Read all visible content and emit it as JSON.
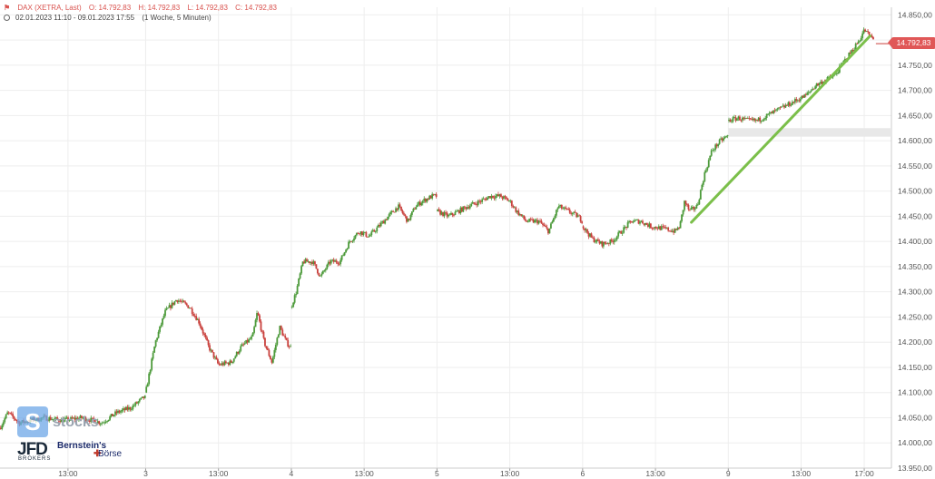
{
  "header": {
    "flag_icon": "chart-flag-icon",
    "instrument": "DAX (XETRA, Last)",
    "open": "O: 14.792,83",
    "high": "H: 14.792,83",
    "low": "L: 14.792,83",
    "close": "C: 14.792,83",
    "range": "02.01.2023 11:10 - 09.01.2023 17:55",
    "period": "(1 Woche, 5 Minuten)"
  },
  "last_price_tag": "14.792,83",
  "logos": {
    "s_mark": "S",
    "stocks": "stocks",
    "jfd": "JFD",
    "jfd_sub": "BROKERS",
    "bernstein": "Bernstein's",
    "borse": "Börse"
  },
  "colors": {
    "up": "#4c9a3a",
    "down": "#c9403c",
    "trendline": "#7bbf4a",
    "grid": "#eeeeee",
    "price_tag": "#e05757",
    "gap_band": "#e8e8e8"
  },
  "chart_data": {
    "type": "candlestick",
    "title": "",
    "ylim": [
      13950,
      14865
    ],
    "y_ticks": [
      "14.850,00",
      "14.800,00",
      "14.750,00",
      "14.700,00",
      "14.650,00",
      "14.600,00",
      "14.550,00",
      "14.500,00",
      "14.450,00",
      "14.400,00",
      "14.350,00",
      "14.300,00",
      "14.250,00",
      "14.200,00",
      "14.150,00",
      "14.100,00",
      "14.050,00",
      "14.000,00",
      "13.950,00"
    ],
    "y_tick_values": [
      14850,
      14800,
      14750,
      14700,
      14650,
      14600,
      14550,
      14500,
      14450,
      14400,
      14350,
      14300,
      14250,
      14200,
      14150,
      14100,
      14050,
      14000,
      13950
    ],
    "x_ticks": [
      "13:00",
      "3",
      "13:00",
      "4",
      "13:00",
      "5",
      "13:00",
      "6",
      "13:00",
      "9",
      "13:00",
      "17:00"
    ],
    "x_tick_positions": [
      0.7,
      1.5,
      2.25,
      3.0,
      3.75,
      4.5,
      5.25,
      6.0,
      6.75,
      7.5,
      8.25,
      8.9
    ],
    "sessions": [
      {
        "start": 0.0,
        "end": 1.5,
        "path": [
          [
            0.0,
            14030
          ],
          [
            0.08,
            14060
          ],
          [
            0.2,
            14040
          ],
          [
            0.45,
            14050
          ],
          [
            0.65,
            14045
          ],
          [
            0.85,
            14050
          ],
          [
            1.05,
            14040
          ],
          [
            1.2,
            14060
          ],
          [
            1.35,
            14070
          ],
          [
            1.48,
            14090
          ]
        ]
      },
      {
        "start": 1.5,
        "end": 3.0,
        "path": [
          [
            1.5,
            14100
          ],
          [
            1.6,
            14200
          ],
          [
            1.7,
            14260
          ],
          [
            1.82,
            14285
          ],
          [
            1.95,
            14270
          ],
          [
            2.05,
            14240
          ],
          [
            2.15,
            14190
          ],
          [
            2.25,
            14155
          ],
          [
            2.38,
            14160
          ],
          [
            2.48,
            14190
          ],
          [
            2.6,
            14210
          ],
          [
            2.65,
            14260
          ],
          [
            2.72,
            14200
          ],
          [
            2.8,
            14160
          ],
          [
            2.88,
            14230
          ],
          [
            2.95,
            14200
          ],
          [
            2.99,
            14190
          ]
        ]
      },
      {
        "start": 3.0,
        "end": 4.5,
        "path": [
          [
            3.0,
            14270
          ],
          [
            3.05,
            14300
          ],
          [
            3.12,
            14360
          ],
          [
            3.22,
            14360
          ],
          [
            3.3,
            14330
          ],
          [
            3.4,
            14360
          ],
          [
            3.5,
            14360
          ],
          [
            3.6,
            14400
          ],
          [
            3.7,
            14420
          ],
          [
            3.8,
            14410
          ],
          [
            3.9,
            14430
          ],
          [
            4.0,
            14450
          ],
          [
            4.1,
            14470
          ],
          [
            4.2,
            14440
          ],
          [
            4.28,
            14470
          ],
          [
            4.35,
            14480
          ],
          [
            4.45,
            14490
          ],
          [
            4.5,
            14490
          ]
        ]
      },
      {
        "start": 4.5,
        "end": 6.0,
        "path": [
          [
            4.5,
            14460
          ],
          [
            4.62,
            14450
          ],
          [
            4.72,
            14460
          ],
          [
            4.82,
            14470
          ],
          [
            4.95,
            14480
          ],
          [
            5.05,
            14490
          ],
          [
            5.15,
            14490
          ],
          [
            5.25,
            14480
          ],
          [
            5.32,
            14460
          ],
          [
            5.42,
            14440
          ],
          [
            5.55,
            14440
          ],
          [
            5.65,
            14420
          ],
          [
            5.75,
            14470
          ],
          [
            5.85,
            14460
          ],
          [
            5.95,
            14450
          ],
          [
            6.0,
            14440
          ]
        ]
      },
      {
        "start": 6.0,
        "end": 7.5,
        "path": [
          [
            6.0,
            14430
          ],
          [
            6.1,
            14405
          ],
          [
            6.2,
            14395
          ],
          [
            6.3,
            14400
          ],
          [
            6.4,
            14420
          ],
          [
            6.5,
            14440
          ],
          [
            6.6,
            14440
          ],
          [
            6.7,
            14430
          ],
          [
            6.85,
            14425
          ],
          [
            6.95,
            14420
          ],
          [
            7.0,
            14430
          ],
          [
            7.05,
            14480
          ],
          [
            7.1,
            14460
          ],
          [
            7.18,
            14470
          ],
          [
            7.25,
            14530
          ],
          [
            7.33,
            14580
          ],
          [
            7.42,
            14600
          ],
          [
            7.5,
            14610
          ]
        ]
      },
      {
        "start": 7.5,
        "end": 9.0,
        "path": [
          [
            7.5,
            14640
          ],
          [
            7.6,
            14645
          ],
          [
            7.7,
            14640
          ],
          [
            7.8,
            14640
          ],
          [
            7.9,
            14650
          ],
          [
            8.0,
            14660
          ],
          [
            8.1,
            14670
          ],
          [
            8.2,
            14680
          ],
          [
            8.3,
            14690
          ],
          [
            8.4,
            14710
          ],
          [
            8.5,
            14720
          ],
          [
            8.6,
            14730
          ],
          [
            8.7,
            14760
          ],
          [
            8.78,
            14780
          ],
          [
            8.85,
            14800
          ],
          [
            8.9,
            14820
          ],
          [
            8.95,
            14810
          ],
          [
            9.0,
            14800
          ]
        ]
      }
    ],
    "trendline": [
      [
        7.12,
        14438
      ],
      [
        8.96,
        14808
      ]
    ],
    "gap_band": [
      14608,
      14625
    ],
    "last_price": 14792.83,
    "grid": true,
    "legend": "none"
  }
}
